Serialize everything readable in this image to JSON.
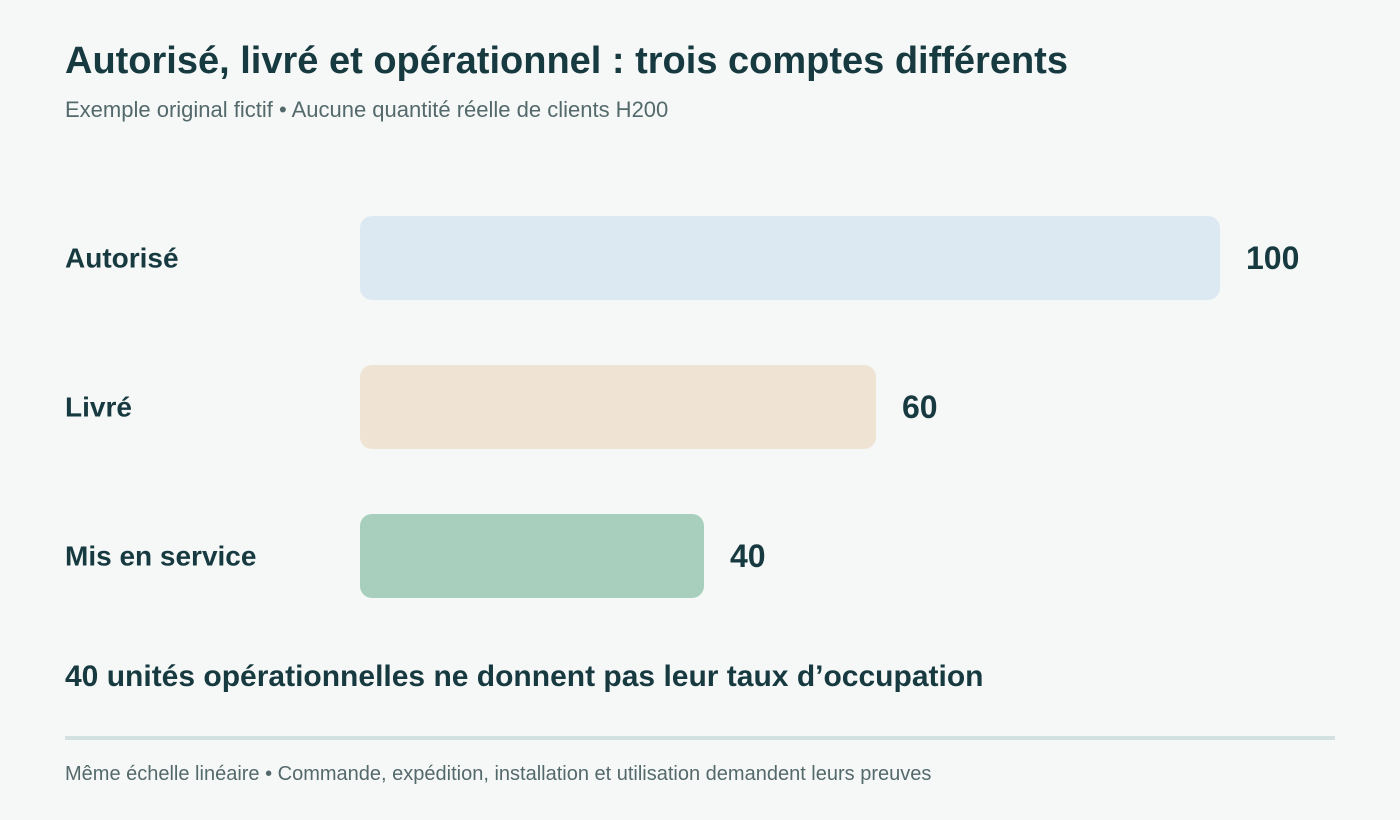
{
  "header": {
    "title": "Autorisé, livré et opérationnel : trois comptes différents",
    "subtitle": "Exemple original fictif • Aucune quantité réelle de clients H200"
  },
  "chart_data": {
    "type": "bar",
    "orientation": "horizontal",
    "categories": [
      "Autorisé",
      "Livré",
      "Mis en service"
    ],
    "values": [
      100,
      60,
      40
    ],
    "value_labels": [
      "100",
      "60",
      "40"
    ],
    "colors": [
      "#dce9f2",
      "#efe3d3",
      "#a8cfbd"
    ],
    "xlim": [
      0,
      100
    ],
    "grid": false,
    "legend": "none"
  },
  "takeaway": "40 unités opérationnelles ne donnent pas leur taux d’occupation",
  "footer": "Même échelle linéaire • Commande, expédition, installation et utilisation demandent leurs preuves",
  "colors": {
    "background": "#f6f8f7",
    "text": "#173a40",
    "muted_text": "#54696b",
    "divider": "#d3e1e0"
  }
}
